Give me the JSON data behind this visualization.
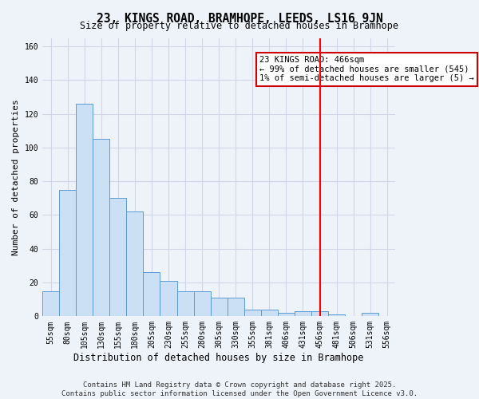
{
  "title": "23, KINGS ROAD, BRAMHOPE, LEEDS, LS16 9JN",
  "subtitle": "Size of property relative to detached houses in Bramhope",
  "xlabel": "Distribution of detached houses by size in Bramhope",
  "ylabel": "Number of detached properties",
  "bar_labels": [
    "55sqm",
    "80sqm",
    "105sqm",
    "130sqm",
    "155sqm",
    "180sqm",
    "205sqm",
    "230sqm",
    "255sqm",
    "280sqm",
    "305sqm",
    "330sqm",
    "355sqm",
    "381sqm",
    "406sqm",
    "431sqm",
    "456sqm",
    "481sqm",
    "506sqm",
    "531sqm",
    "556sqm"
  ],
  "bar_values": [
    15,
    75,
    126,
    105,
    70,
    62,
    26,
    21,
    15,
    15,
    11,
    11,
    4,
    4,
    2,
    3,
    3,
    1,
    0,
    2,
    0
  ],
  "bar_color": "#cce0f5",
  "bar_edge_color": "#5b9bd5",
  "grid_color": "#d0d8e8",
  "bg_color": "#eef2f9",
  "red_line_index": 16,
  "annotation_text": "23 KINGS ROAD: 466sqm\n← 99% of detached houses are smaller (545)\n1% of semi-detached houses are larger (5) →",
  "annotation_box_color": "#ffffff",
  "annotation_border_color": "#cc0000",
  "ylim": [
    0,
    165
  ],
  "yticks": [
    0,
    20,
    40,
    60,
    80,
    100,
    120,
    140,
    160
  ],
  "footer_line1": "Contains HM Land Registry data © Crown copyright and database right 2025.",
  "footer_line2": "Contains public sector information licensed under the Open Government Licence v3.0.",
  "title_fontsize": 10.5,
  "subtitle_fontsize": 8.5,
  "axis_label_fontsize": 8,
  "tick_fontsize": 7,
  "annotation_fontsize": 7.5,
  "footer_fontsize": 6.5
}
